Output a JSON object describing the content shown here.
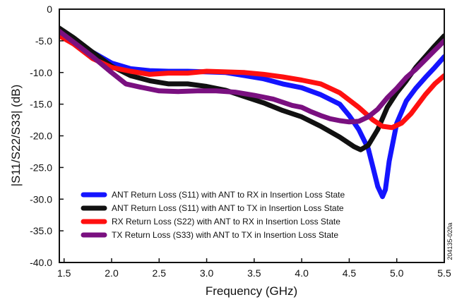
{
  "chart_data": {
    "type": "line",
    "xlabel": "Frequency (GHz)",
    "ylabel": "|S11/S22/S33| (dB)",
    "xlim": [
      1.45,
      5.5
    ],
    "ylim": [
      -40,
      0
    ],
    "x_ticks": [
      1.5,
      2.0,
      2.5,
      3.0,
      3.5,
      4.0,
      4.5,
      5.0,
      5.5
    ],
    "x_tick_labels": [
      "1.5",
      "2.0",
      "2.5",
      "3.0",
      "3.5",
      "4.0",
      "4.5",
      "5.0",
      "5.5"
    ],
    "y_ticks": [
      0,
      -5,
      -10,
      -15,
      -20,
      -25,
      -30,
      -35,
      -40
    ],
    "y_tick_labels": [
      "0",
      "-5.0",
      "-10.0",
      "-15.0",
      "-20.0",
      "-25.0",
      "-30.0",
      "-35.0",
      "-40.0"
    ],
    "grid": false,
    "legend_position": "bottom-left",
    "side_note": "204135-020a",
    "series": [
      {
        "name": "ANT Return Loss (S11) with ANT to RX in Insertion Loss State",
        "color": "#1414ff",
        "x": [
          1.45,
          1.6,
          1.8,
          2.0,
          2.2,
          2.4,
          2.6,
          2.8,
          3.0,
          3.2,
          3.4,
          3.6,
          3.8,
          4.0,
          4.2,
          4.4,
          4.5,
          4.6,
          4.7,
          4.75,
          4.8,
          4.85,
          4.88,
          4.92,
          5.0,
          5.1,
          5.2,
          5.3,
          5.4,
          5.5
        ],
        "y": [
          -4.0,
          -5.0,
          -6.8,
          -8.5,
          -9.4,
          -9.7,
          -9.8,
          -9.8,
          -9.9,
          -10.0,
          -10.5,
          -11.0,
          -11.8,
          -12.4,
          -13.5,
          -15.0,
          -16.8,
          -19.0,
          -22.0,
          -25.0,
          -28.0,
          -29.6,
          -28.5,
          -24.0,
          -18.0,
          -14.5,
          -12.5,
          -10.8,
          -9.2,
          -7.5
        ]
      },
      {
        "name": "ANT Return Loss (S11) with ANT to TX in Insertion Loss State",
        "color": "#111111",
        "x": [
          1.45,
          1.6,
          1.8,
          2.0,
          2.2,
          2.4,
          2.6,
          2.8,
          3.0,
          3.2,
          3.4,
          3.6,
          3.8,
          4.0,
          4.2,
          4.4,
          4.55,
          4.62,
          4.7,
          4.8,
          4.9,
          5.0,
          5.1,
          5.2,
          5.3,
          5.4,
          5.5
        ],
        "y": [
          -3.0,
          -4.5,
          -6.8,
          -9.0,
          -10.5,
          -11.3,
          -11.8,
          -11.8,
          -12.2,
          -12.8,
          -13.8,
          -14.8,
          -16.0,
          -17.0,
          -18.5,
          -20.2,
          -21.7,
          -22.2,
          -21.5,
          -19.0,
          -15.5,
          -13.2,
          -11.3,
          -9.2,
          -7.5,
          -5.8,
          -4.2
        ]
      },
      {
        "name": "RX Return Loss (S22) with ANT to RX in Insertion Loss State",
        "color": "#ff1010",
        "x": [
          1.45,
          1.6,
          1.8,
          2.0,
          2.2,
          2.4,
          2.6,
          2.8,
          3.0,
          3.2,
          3.4,
          3.6,
          3.8,
          4.0,
          4.2,
          4.4,
          4.6,
          4.75,
          4.85,
          4.95,
          5.05,
          5.15,
          5.3,
          5.4,
          5.5
        ],
        "y": [
          -4.2,
          -5.5,
          -7.8,
          -9.2,
          -9.8,
          -10.3,
          -10.1,
          -10.1,
          -9.8,
          -9.9,
          -10.0,
          -10.3,
          -10.7,
          -11.2,
          -11.8,
          -13.2,
          -15.5,
          -17.5,
          -18.5,
          -18.7,
          -18.0,
          -16.5,
          -13.5,
          -11.8,
          -10.5
        ]
      },
      {
        "name": "TX Return Loss (S33) with ANT to TX in Insertion Loss State",
        "color": "#7a1080",
        "x": [
          1.45,
          1.6,
          1.8,
          2.0,
          2.15,
          2.3,
          2.5,
          2.7,
          2.9,
          3.1,
          3.3,
          3.5,
          3.7,
          3.9,
          4.0,
          4.1,
          4.2,
          4.3,
          4.4,
          4.5,
          4.6,
          4.7,
          4.8,
          4.9,
          5.0,
          5.1,
          5.2,
          5.3,
          5.4,
          5.5
        ],
        "y": [
          -3.5,
          -5.2,
          -7.5,
          -10.0,
          -11.8,
          -12.3,
          -12.9,
          -13.0,
          -12.9,
          -12.9,
          -13.1,
          -13.6,
          -14.2,
          -15.2,
          -15.5,
          -16.2,
          -16.8,
          -17.3,
          -17.6,
          -17.8,
          -17.7,
          -17.0,
          -15.8,
          -14.0,
          -12.5,
          -10.8,
          -9.5,
          -8.0,
          -6.5,
          -5.0
        ]
      }
    ]
  }
}
